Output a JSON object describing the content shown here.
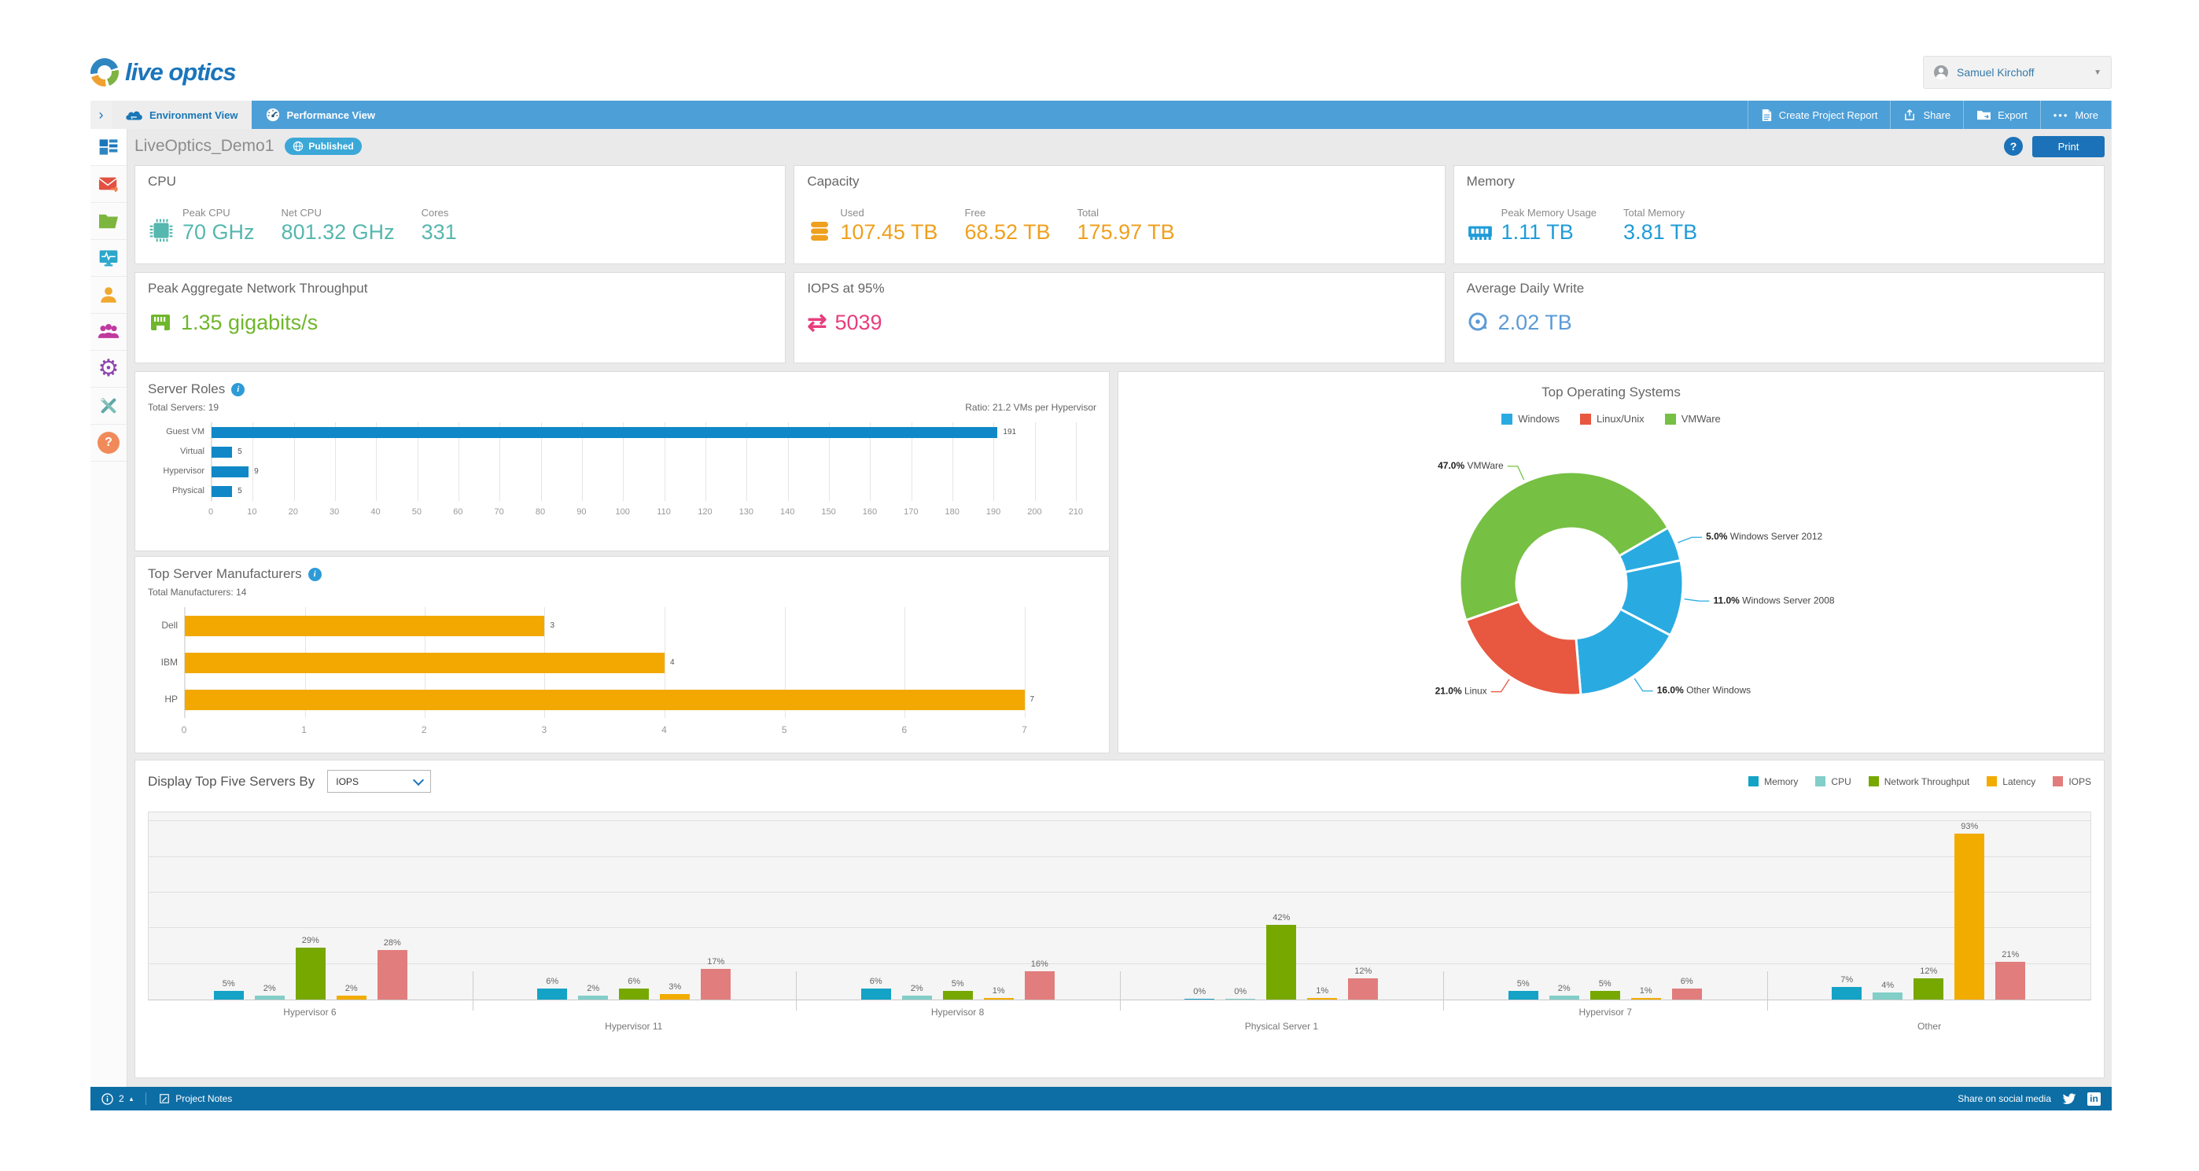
{
  "header": {
    "logo_text": "live optics",
    "user_name": "Samuel Kirchoff"
  },
  "navbar": {
    "collapse_chevron": "›",
    "tabs": [
      {
        "label": "Environment View"
      },
      {
        "label": "Performance View"
      }
    ],
    "actions": [
      {
        "label": "Create Project Report"
      },
      {
        "label": "Share"
      },
      {
        "label": "Export"
      },
      {
        "label": "More"
      }
    ]
  },
  "toolbar": {
    "project_name": "LiveOptics_Demo1",
    "status_badge": "Published",
    "print_label": "Print"
  },
  "summary_cards": [
    {
      "title": "CPU",
      "icon": "cpu-chip-icon",
      "color": "#56b7af",
      "metrics": [
        {
          "label": "Peak CPU",
          "value": "70 GHz"
        },
        {
          "label": "Net CPU",
          "value": "801.32 GHz"
        },
        {
          "label": "Cores",
          "value": "331"
        }
      ]
    },
    {
      "title": "Capacity",
      "icon": "database-icon",
      "color": "#efa01e",
      "metrics": [
        {
          "label": "Used",
          "value": "107.45 TB"
        },
        {
          "label": "Free",
          "value": "68.52 TB"
        },
        {
          "label": "Total",
          "value": "175.97 TB"
        }
      ]
    },
    {
      "title": "Memory",
      "icon": "ram-icon",
      "color": "#1f9cd8",
      "metrics": [
        {
          "label": "Peak Memory Usage",
          "value": "1.11 TB"
        },
        {
          "label": "Total Memory",
          "value": "3.81 TB"
        }
      ]
    },
    {
      "title": "Peak Aggregate Network Throughput",
      "icon": "ethernet-icon",
      "color": "#70b62c",
      "metrics": [
        {
          "label": "",
          "value": "1.35 gigabits/s"
        }
      ]
    },
    {
      "title": "IOPS at 95%",
      "icon": "transfer-arrows-icon",
      "color": "#e73e7d",
      "metrics": [
        {
          "label": "",
          "value": "5039"
        }
      ]
    },
    {
      "title": "Average Daily Write",
      "icon": "disc-write-icon",
      "color": "#5b9bd5",
      "metrics": [
        {
          "label": "",
          "value": "2.02 TB"
        }
      ]
    }
  ],
  "chart_data": [
    {
      "id": "server_roles",
      "type": "bar",
      "orientation": "horizontal",
      "title": "Server Roles",
      "subtitle_left": "Total Servers: 19",
      "subtitle_right": "Ratio: 21.2 VMs per Hypervisor",
      "categories": [
        "Guest VM",
        "Virtual",
        "Hypervisor",
        "Physical"
      ],
      "values": [
        191,
        5,
        9,
        5
      ],
      "bar_color": "#1088c8",
      "xlim": [
        0,
        215
      ],
      "tick_step": 10,
      "tick_max": 210,
      "grid": true
    },
    {
      "id": "top_manufacturers",
      "type": "bar",
      "orientation": "horizontal",
      "title": "Top Server Manufacturers",
      "subtitle_left": "Total Manufacturers: 14",
      "categories": [
        "Dell",
        "IBM",
        "HP"
      ],
      "values": [
        3,
        4,
        7
      ],
      "bar_color": "#f2a800",
      "xlim": [
        0,
        7.6
      ],
      "tick_step": 1,
      "tick_max": 7,
      "grid": true
    },
    {
      "id": "top_operating_systems",
      "type": "pie",
      "title": "Top Operating Systems",
      "legend": [
        {
          "label": "Windows",
          "color": "#29abe2"
        },
        {
          "label": "Linux/Unix",
          "color": "#e8573f"
        },
        {
          "label": "VMWare",
          "color": "#76c043"
        }
      ],
      "start_angle": 250.8,
      "slices": [
        {
          "label": "VMWare",
          "pct": 47.0,
          "color": "#76c043"
        },
        {
          "label": "Windows Server 2012",
          "pct": 5.0,
          "color": "#29abe2"
        },
        {
          "label": "Windows Server 2008",
          "pct": 11.0,
          "color": "#29abe2"
        },
        {
          "label": "Other Windows",
          "pct": 16.0,
          "color": "#29abe2"
        },
        {
          "label": "Linux",
          "pct": 21.0,
          "color": "#e8573f"
        }
      ]
    },
    {
      "id": "top_five_servers",
      "type": "bar",
      "orientation": "vertical",
      "title": "Display Top Five Servers By",
      "dropdown_value": "IOPS",
      "value_suffix": "%",
      "categories": [
        "Hypervisor 6",
        "Hypervisor 11",
        "Hypervisor 8",
        "Physical Server 1",
        "Hypervisor 7",
        "Other"
      ],
      "series": [
        {
          "name": "Memory",
          "color": "#14a3c7",
          "values": [
            5,
            6,
            6,
            0,
            5,
            7
          ]
        },
        {
          "name": "CPU",
          "color": "#82cec8",
          "values": [
            2,
            2,
            2,
            0,
            2,
            4
          ]
        },
        {
          "name": "Network Throughput",
          "color": "#76a800",
          "values": [
            29,
            6,
            5,
            42,
            5,
            12
          ]
        },
        {
          "name": "Latency",
          "color": "#f2ac00",
          "values": [
            2,
            3,
            1,
            1,
            1,
            93
          ]
        },
        {
          "name": "IOPS",
          "color": "#e27d7d",
          "values": [
            28,
            17,
            16,
            12,
            6,
            21
          ]
        }
      ],
      "ylim": [
        0,
        105
      ],
      "grid_step_pct": 20
    }
  ],
  "footer": {
    "note_count": "2",
    "project_notes_label": "Project Notes",
    "share_label": "Share on social media"
  }
}
